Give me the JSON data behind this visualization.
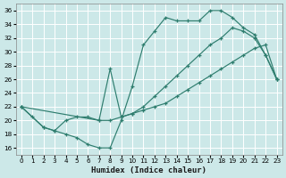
{
  "xlabel": "Humidex (Indice chaleur)",
  "bg_color": "#cce8e8",
  "grid_color": "#ffffff",
  "line_color": "#2e7d6e",
  "xlim": [
    -0.5,
    23.5
  ],
  "ylim": [
    15.0,
    37.0
  ],
  "xticks": [
    0,
    1,
    2,
    3,
    4,
    5,
    6,
    7,
    8,
    9,
    10,
    11,
    12,
    13,
    14,
    15,
    16,
    17,
    18,
    19,
    20,
    21,
    22,
    23
  ],
  "yticks": [
    16,
    18,
    20,
    22,
    24,
    26,
    28,
    30,
    32,
    34,
    36
  ],
  "curve1_x": [
    0,
    1,
    2,
    3,
    4,
    5,
    6,
    7,
    8,
    9,
    10,
    11,
    12,
    13,
    14,
    15,
    16,
    17,
    18,
    19,
    20,
    21,
    22,
    23
  ],
  "curve1_y": [
    22,
    20.5,
    19,
    18.5,
    18,
    17.5,
    16.5,
    16,
    16,
    20,
    25,
    31,
    33,
    35,
    34.5,
    34.5,
    34.5,
    36,
    36,
    35,
    33.5,
    32.5,
    29.5,
    26
  ],
  "curve2_x": [
    0,
    7,
    8,
    9,
    10,
    11,
    12,
    13,
    14,
    15,
    16,
    17,
    18,
    19,
    20,
    21,
    22,
    23
  ],
  "curve2_y": [
    22,
    20,
    27.5,
    20.5,
    21,
    22,
    23.5,
    25,
    26.5,
    28,
    29.5,
    31,
    32,
    33.5,
    33,
    32,
    29.5,
    26
  ],
  "curve3_x": [
    0,
    2,
    3,
    4,
    5,
    6,
    7,
    8,
    9,
    10,
    11,
    12,
    13,
    14,
    15,
    16,
    17,
    18,
    19,
    20,
    21,
    22,
    23
  ],
  "curve3_y": [
    22,
    19,
    18.5,
    20,
    20.5,
    20.5,
    20,
    20,
    20.5,
    21,
    21.5,
    22,
    22.5,
    23.5,
    24.5,
    25.5,
    26.5,
    27.5,
    28.5,
    29.5,
    30.5,
    31,
    26
  ]
}
